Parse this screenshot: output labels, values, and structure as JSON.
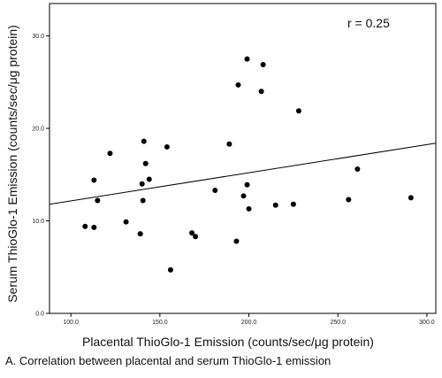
{
  "chart_data": {
    "type": "scatter",
    "xlabel": "Placental ThioGlo-1 Emission (counts/sec/μg protein)",
    "ylabel": "Serum ThioGlo-1 Emission (counts/sec/μg protein)",
    "xlim": [
      88,
      305
    ],
    "ylim": [
      0,
      33.5
    ],
    "xticks": [
      "100.0",
      "150.0",
      "200.0",
      "250.0",
      "300.0"
    ],
    "yticks": [
      "0.0",
      "10.0",
      "20.0",
      "30.0"
    ],
    "annotation": "r = 0.25",
    "grid": false,
    "points": [
      {
        "x": 108,
        "y": 9.4
      },
      {
        "x": 113,
        "y": 9.3
      },
      {
        "x": 113,
        "y": 14.4
      },
      {
        "x": 115,
        "y": 12.2
      },
      {
        "x": 122,
        "y": 17.3
      },
      {
        "x": 131,
        "y": 9.9
      },
      {
        "x": 139,
        "y": 8.6
      },
      {
        "x": 140,
        "y": 14.0
      },
      {
        "x": 140.5,
        "y": 12.2
      },
      {
        "x": 141,
        "y": 18.6
      },
      {
        "x": 142,
        "y": 16.2
      },
      {
        "x": 144,
        "y": 14.5
      },
      {
        "x": 154,
        "y": 18.0
      },
      {
        "x": 156,
        "y": 4.7
      },
      {
        "x": 168,
        "y": 8.7
      },
      {
        "x": 170,
        "y": 8.3
      },
      {
        "x": 181,
        "y": 13.3
      },
      {
        "x": 189,
        "y": 18.3
      },
      {
        "x": 193,
        "y": 7.8
      },
      {
        "x": 194,
        "y": 24.7
      },
      {
        "x": 197,
        "y": 12.7
      },
      {
        "x": 199,
        "y": 27.5
      },
      {
        "x": 199,
        "y": 13.9
      },
      {
        "x": 200,
        "y": 11.3
      },
      {
        "x": 207,
        "y": 24.0
      },
      {
        "x": 208,
        "y": 26.9
      },
      {
        "x": 215,
        "y": 11.7
      },
      {
        "x": 225,
        "y": 11.8
      },
      {
        "x": 228,
        "y": 21.9
      },
      {
        "x": 256,
        "y": 12.3
      },
      {
        "x": 261,
        "y": 15.6
      },
      {
        "x": 291,
        "y": 12.5
      }
    ],
    "fit_line": {
      "x": [
        88,
        305
      ],
      "y": [
        11.8,
        18.4
      ]
    }
  },
  "caption": "A. Correlation between placental and serum ThioGlo-1 emission"
}
